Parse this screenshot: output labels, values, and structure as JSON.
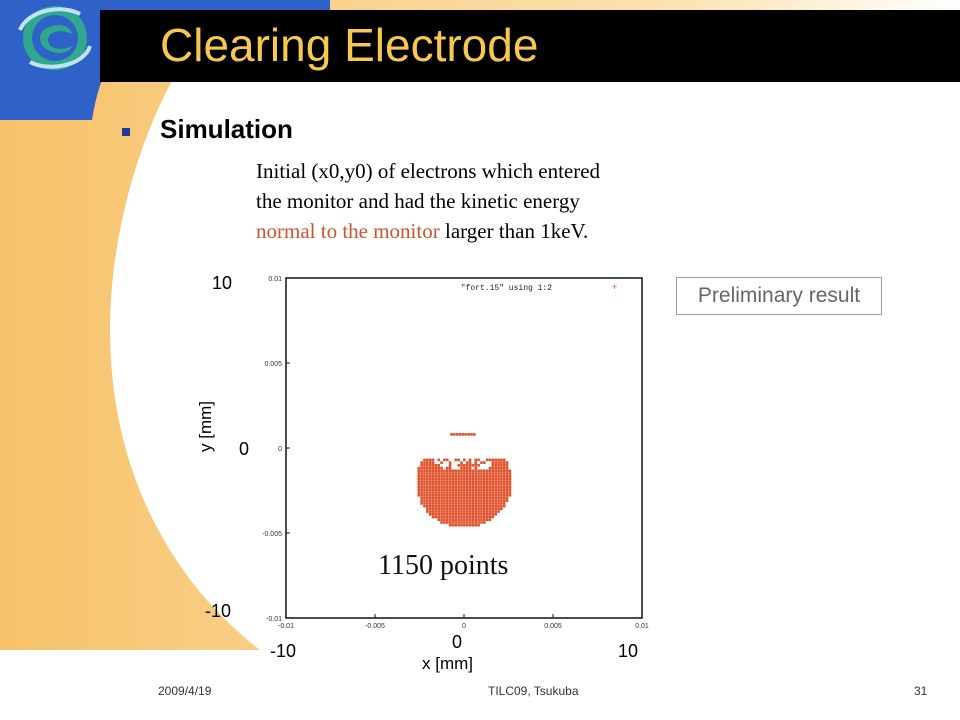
{
  "title": "Clearing Electrode",
  "subheading": "Simulation",
  "description": {
    "line1": "Initial (x0,y0) of electrons which entered",
    "line2": "the monitor and had the kinetic energy",
    "line3_red": "normal to the monitor",
    "line3_rest": " larger than 1keV."
  },
  "badge": "Preliminary result",
  "colors": {
    "accent": "#f7c850",
    "title_bar": "#000000",
    "points": "#e0502a",
    "swoosh": "#f7c26a",
    "blue": "#2f62c8"
  },
  "chart_data": {
    "type": "scatter",
    "legend": "\"fort.15\" using 1:2",
    "legend_position": "top-right",
    "annotation": "1150 points",
    "xlim": [
      -0.01,
      0.01
    ],
    "ylim": [
      -0.01,
      0.01
    ],
    "x_ticks": [
      "-0.01",
      "-0.005",
      "0",
      "0.005",
      "0.01"
    ],
    "y_ticks": [
      "0.01",
      "0.005",
      "0",
      "-0.005",
      "-0.01"
    ],
    "outer_x_labels": [
      "-10",
      "0",
      "10"
    ],
    "outer_y_labels": [
      "10",
      "0",
      "-10"
    ],
    "xlabel": "x [mm]",
    "ylabel": "y [mm]",
    "cluster": {
      "x_center": 0.0,
      "y_center": -0.002,
      "radius": 0.0027,
      "top_y": -0.0007,
      "point_count": 1150
    },
    "small_bar": {
      "x_from": -0.0007,
      "x_to": 0.0007,
      "y": 0.0008
    }
  },
  "footer": {
    "date": "2009/4/19",
    "event": "TILC09,  Tsukuba",
    "page": "31"
  }
}
